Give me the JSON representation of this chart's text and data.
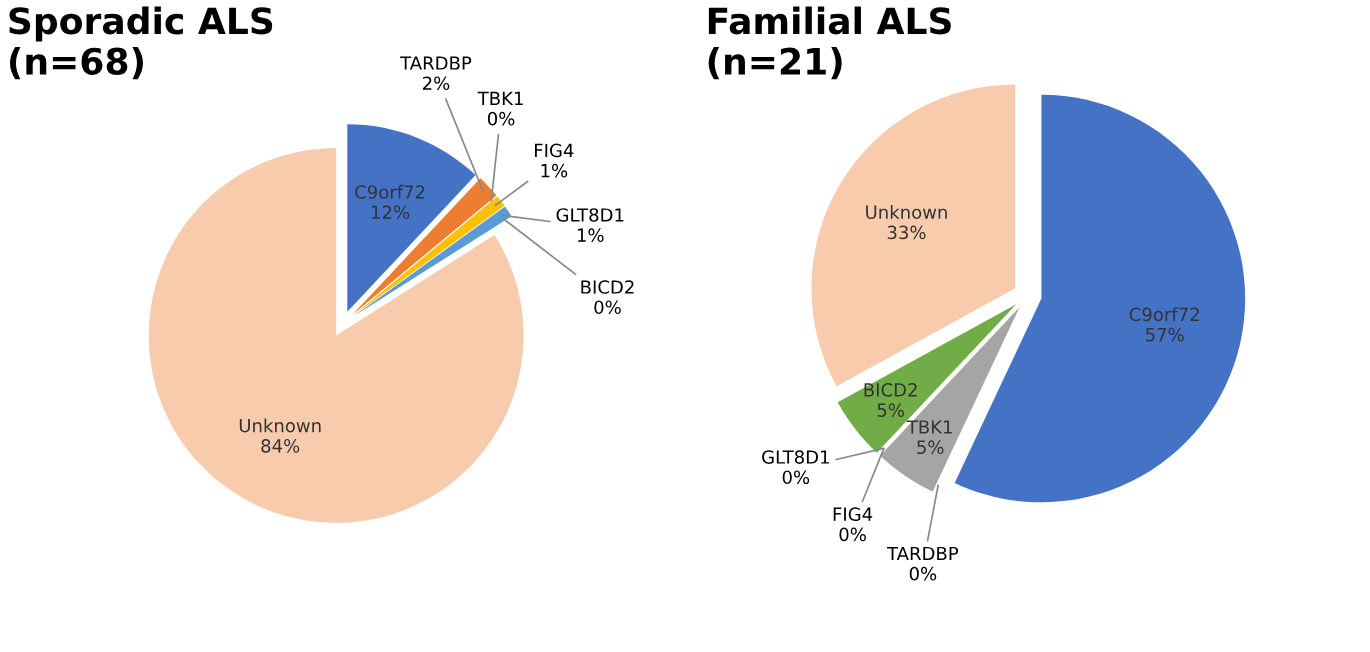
{
  "chart_data": [
    {
      "type": "pie",
      "title": "Sporadic ALS\n(n=68)",
      "categories": [
        "C9orf72",
        "TARDBP",
        "TBK1",
        "FIG4",
        "GLT8D1",
        "BICD2",
        "Unknown"
      ],
      "values": [
        12,
        2,
        0,
        1,
        1,
        0,
        84
      ],
      "colors": [
        "#4472c4",
        "#ed7d31",
        "#a5a5a5",
        "#ffc000",
        "#5b9bd5",
        "#70ad47",
        "#f8cbad"
      ],
      "value_labels": [
        "12%",
        "2%",
        "0%",
        "1%",
        "1%",
        "0%",
        "84%"
      ]
    },
    {
      "type": "pie",
      "title": "Familial ALS\n(n=21)",
      "categories": [
        "C9orf72",
        "TARDBP",
        "TBK1",
        "FIG4",
        "GLT8D1",
        "BICD2",
        "Unknown"
      ],
      "values": [
        57,
        0,
        5,
        0,
        0,
        5,
        33
      ],
      "colors": [
        "#4472c4",
        "#ed7d31",
        "#a5a5a5",
        "#ffc000",
        "#5b9bd5",
        "#70ad47",
        "#f8cbad"
      ],
      "value_labels": [
        "57%",
        "0%",
        "5%",
        "0%",
        "0%",
        "5%",
        "33%"
      ]
    }
  ]
}
